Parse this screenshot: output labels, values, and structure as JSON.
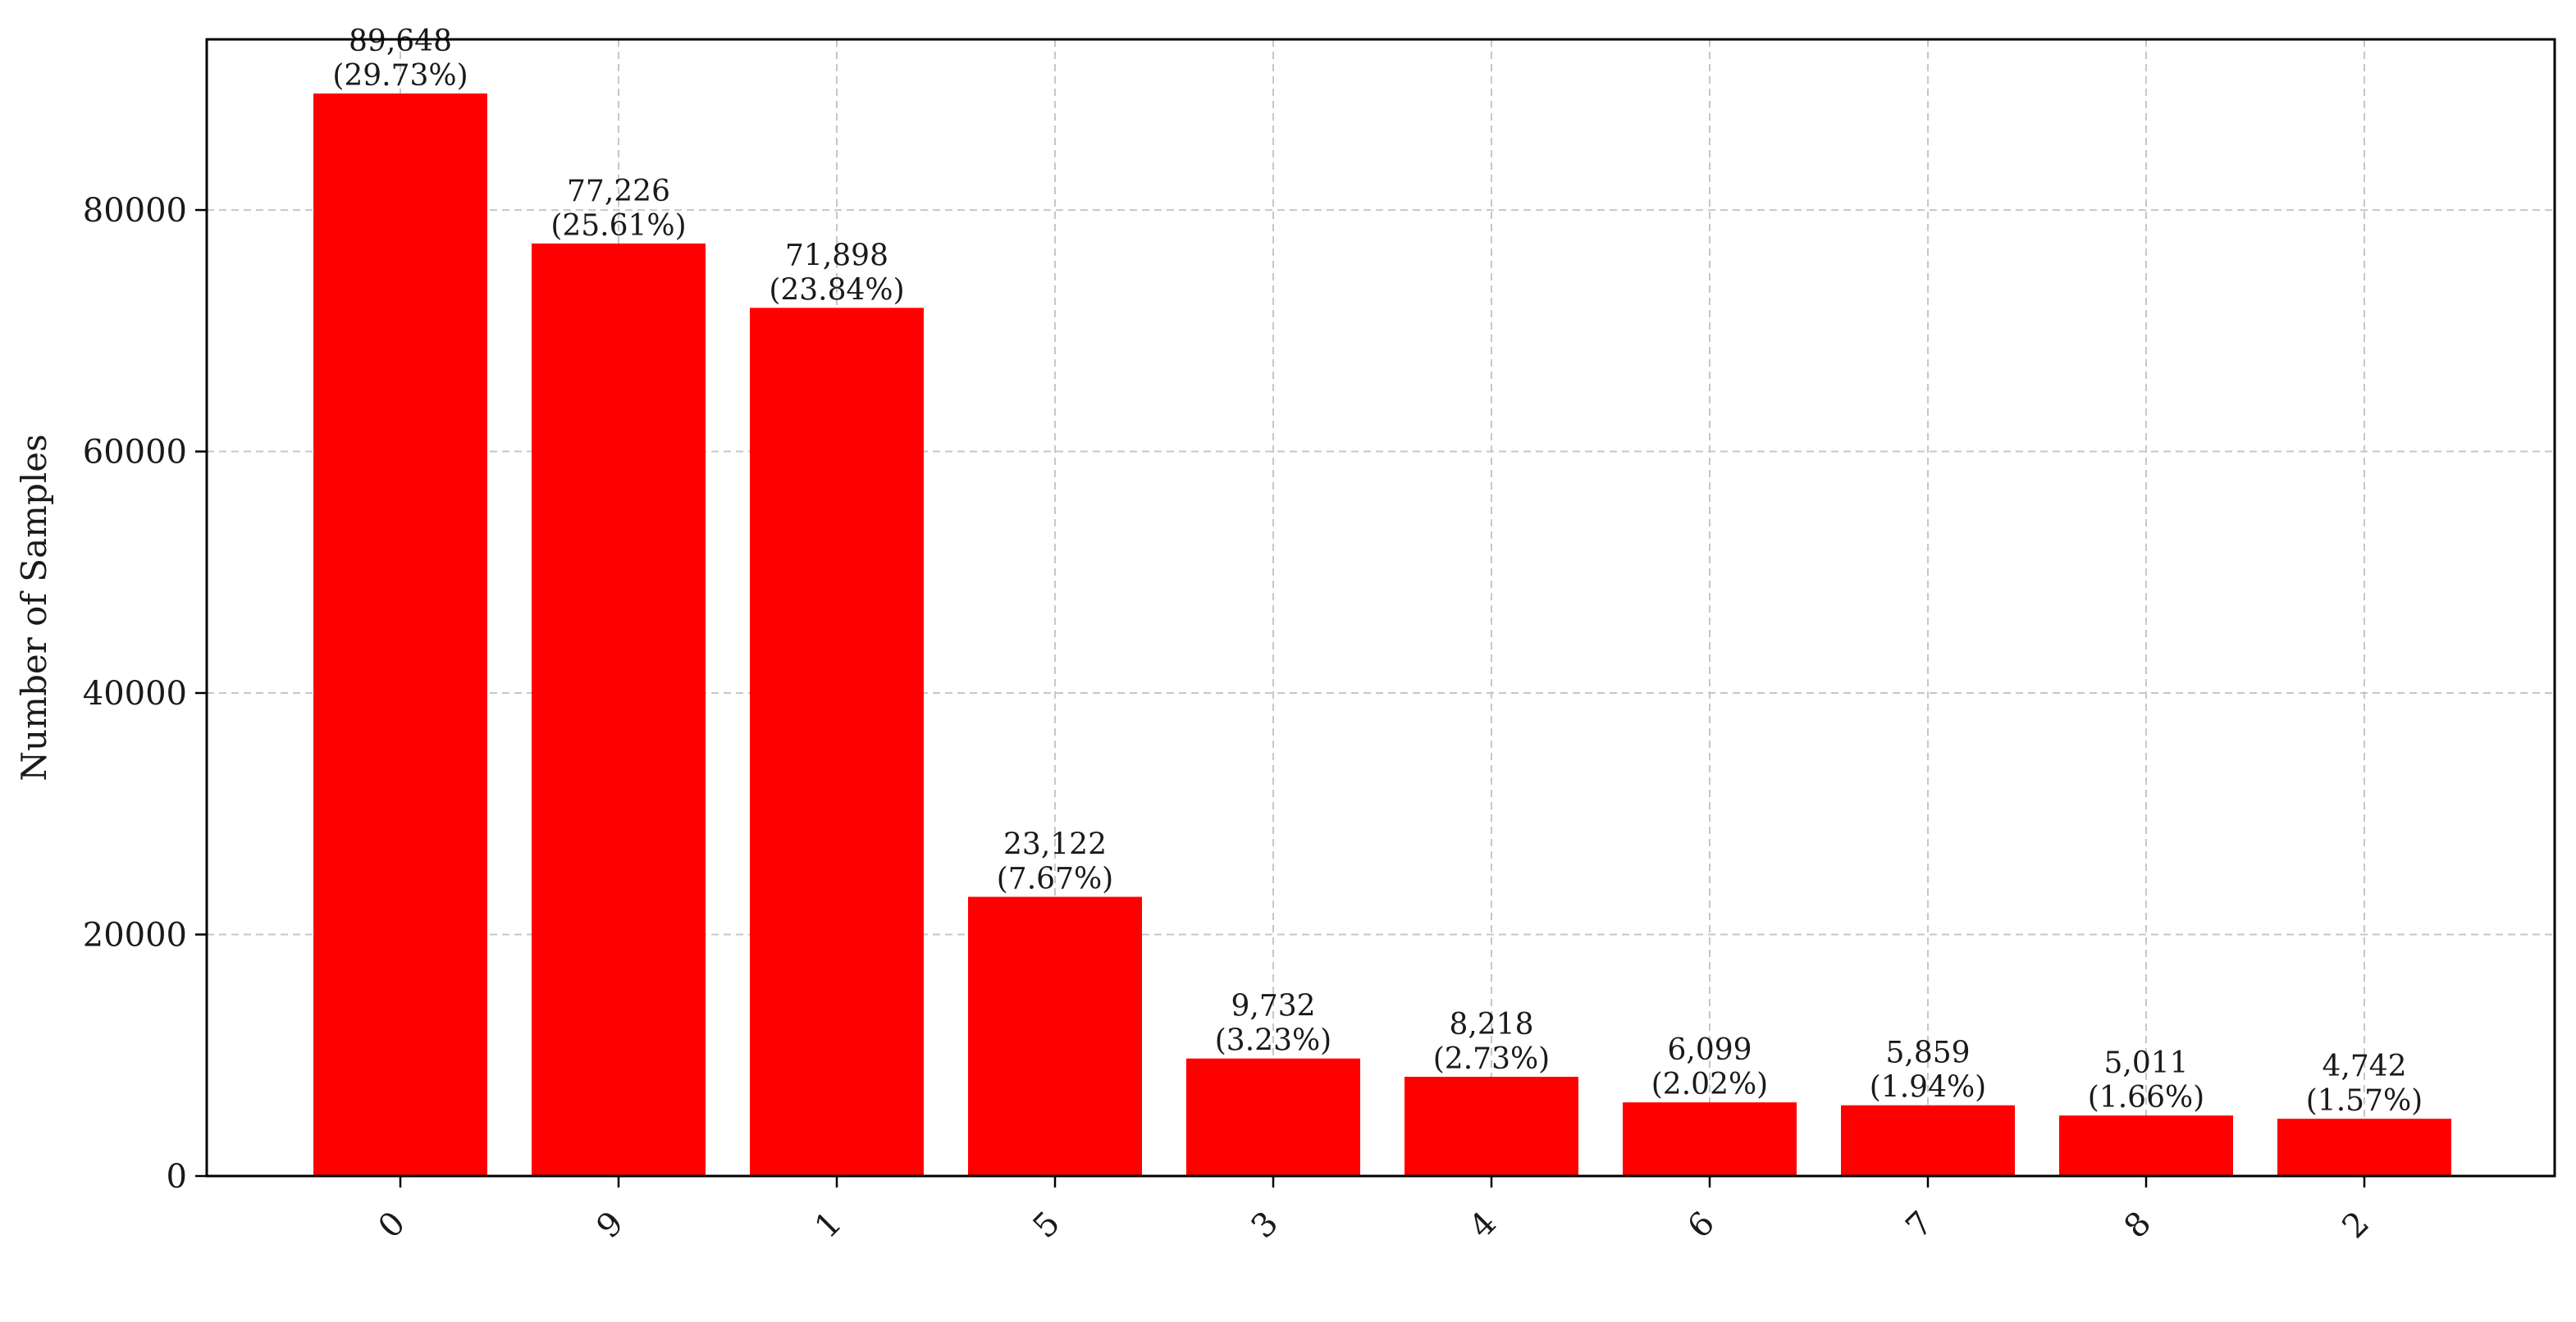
{
  "chart_data": {
    "type": "bar",
    "categories": [
      "0",
      "9",
      "1",
      "5",
      "3",
      "4",
      "6",
      "7",
      "8",
      "2"
    ],
    "values": [
      89648,
      77226,
      71898,
      23122,
      9732,
      8218,
      6099,
      5859,
      5011,
      4742
    ],
    "bar_labels": [
      [
        "89,648",
        "(29.73%)"
      ],
      [
        "77,226",
        "(25.61%)"
      ],
      [
        "71,898",
        "(23.84%)"
      ],
      [
        "23,122",
        "(7.67%)"
      ],
      [
        "9,732",
        "(3.23%)"
      ],
      [
        "8,218",
        "(2.73%)"
      ],
      [
        "6,099",
        "(2.02%)"
      ],
      [
        "5,859",
        "(1.94%)"
      ],
      [
        "5,011",
        "(1.66%)"
      ],
      [
        "4,742",
        "(1.57%)"
      ]
    ],
    "title": "",
    "xlabel": "",
    "ylabel": "Number of Samples",
    "ylim": [
      0,
      94131
    ],
    "yticks": [
      0,
      20000,
      40000,
      60000,
      80000
    ],
    "ytick_labels": [
      "0",
      "20000",
      "40000",
      "60000",
      "80000"
    ],
    "grid": true,
    "bar_color": "#ff0000",
    "xtick_rotation_deg": 45
  }
}
